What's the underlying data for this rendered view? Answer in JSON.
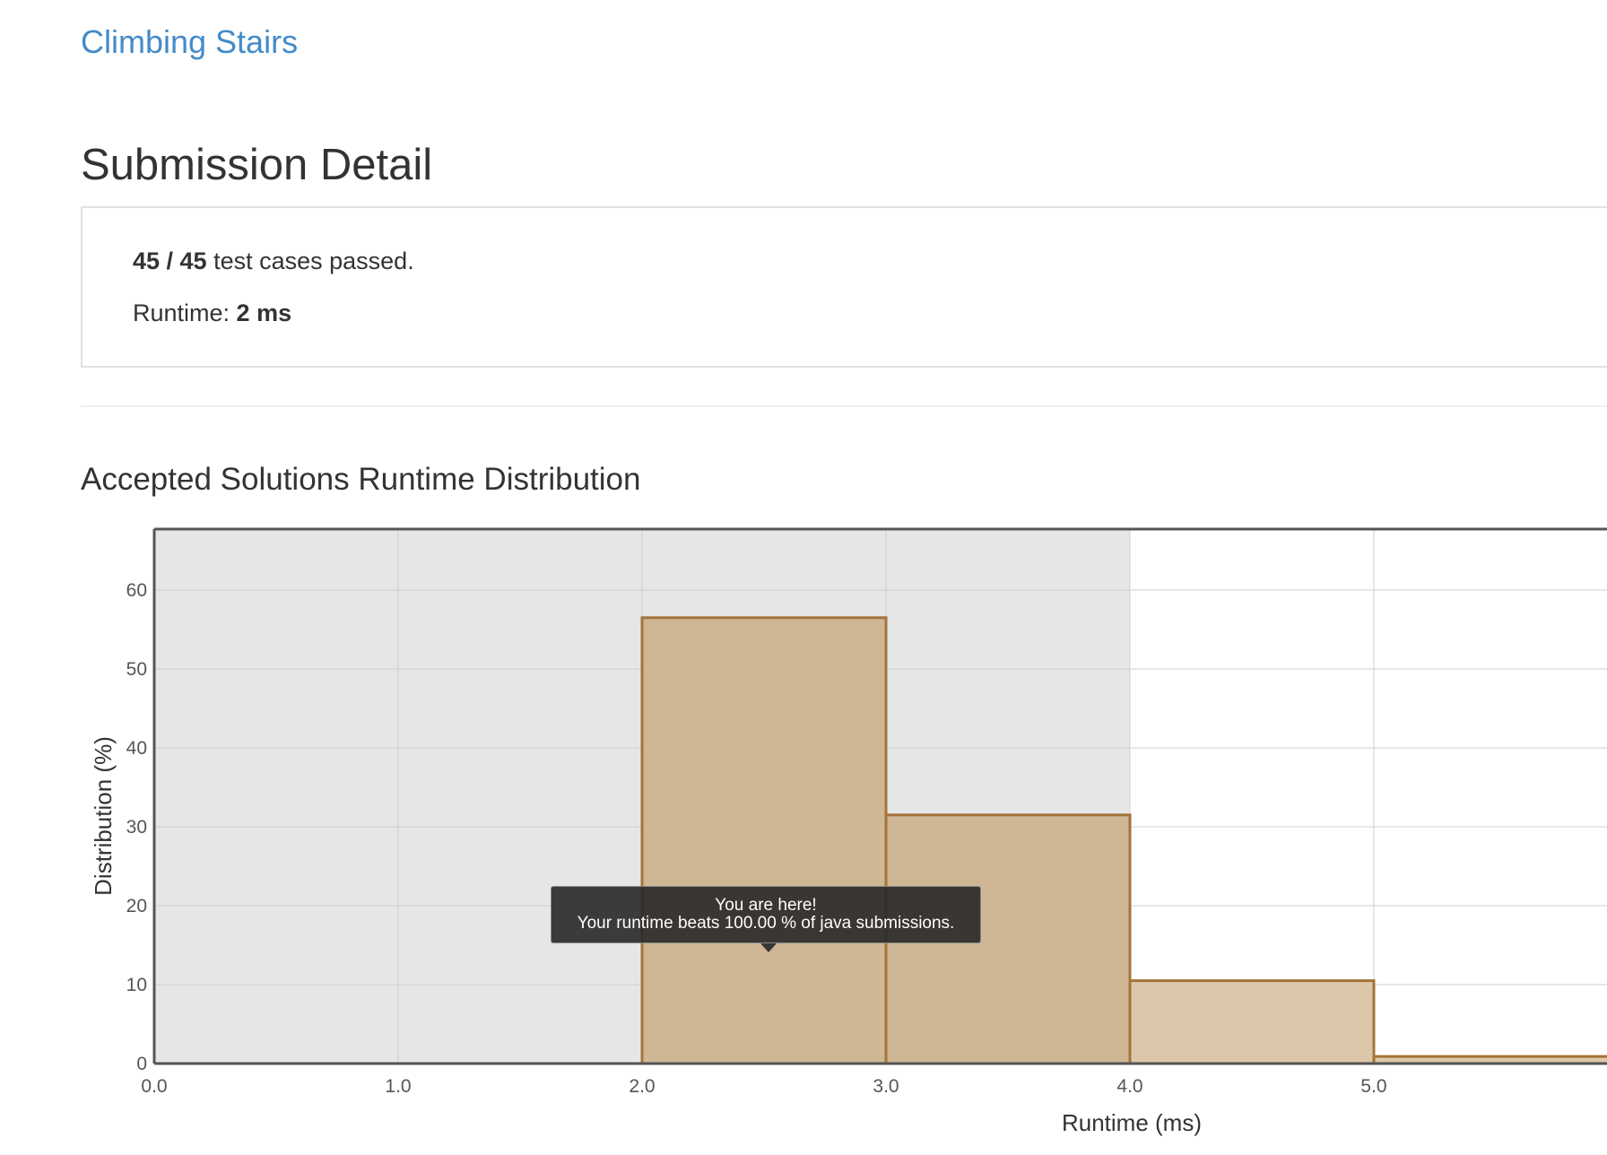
{
  "problem": {
    "title": "Climbing Stairs"
  },
  "page": {
    "title": "Submission Detail"
  },
  "result": {
    "passed_count": "45 / 45",
    "passed_suffix": " test cases passed.",
    "runtime_label": "Runtime: ",
    "runtime_value": "2 ms"
  },
  "section": {
    "title": "Accepted Solutions Runtime Distribution"
  },
  "tooltip": {
    "line1": "You are here!",
    "line2": "Your runtime beats 100.00 % of java submissions."
  },
  "colors": {
    "link": "#428bca",
    "bar_fill_highlight": "#cfb795",
    "bar_fill": "#dcc7aa",
    "bar_stroke": "#a4743a",
    "plot_shade": "#e6e6e6",
    "grid": "#cfcfcf",
    "axis": "#555555"
  },
  "chart_data": {
    "type": "bar",
    "xlabel": "Runtime (ms)",
    "ylabel": "Distribution (%)",
    "xlim": [
      0,
      5.9
    ],
    "ylim": [
      0,
      68
    ],
    "x_ticks": [
      0,
      1,
      2,
      3,
      4,
      5
    ],
    "x_tick_labels": [
      "0.0",
      "1.0",
      "2.0",
      "3.0",
      "4.0",
      "5.0"
    ],
    "y_ticks": [
      0,
      10,
      20,
      30,
      40,
      50,
      60
    ],
    "y_tick_labels": [
      "0",
      "10",
      "20",
      "30",
      "40",
      "50",
      "60"
    ],
    "bins": [
      {
        "from": 2,
        "to": 3,
        "value": 56.5,
        "highlight": true
      },
      {
        "from": 3,
        "to": 4,
        "value": 31.5,
        "highlight": true
      },
      {
        "from": 4,
        "to": 5,
        "value": 10.5,
        "highlight": false
      },
      {
        "from": 5,
        "to": 6,
        "value": 0.9,
        "highlight": false
      }
    ],
    "shaded_region": [
      0,
      4
    ],
    "your_runtime": 2.5,
    "grid": true
  }
}
